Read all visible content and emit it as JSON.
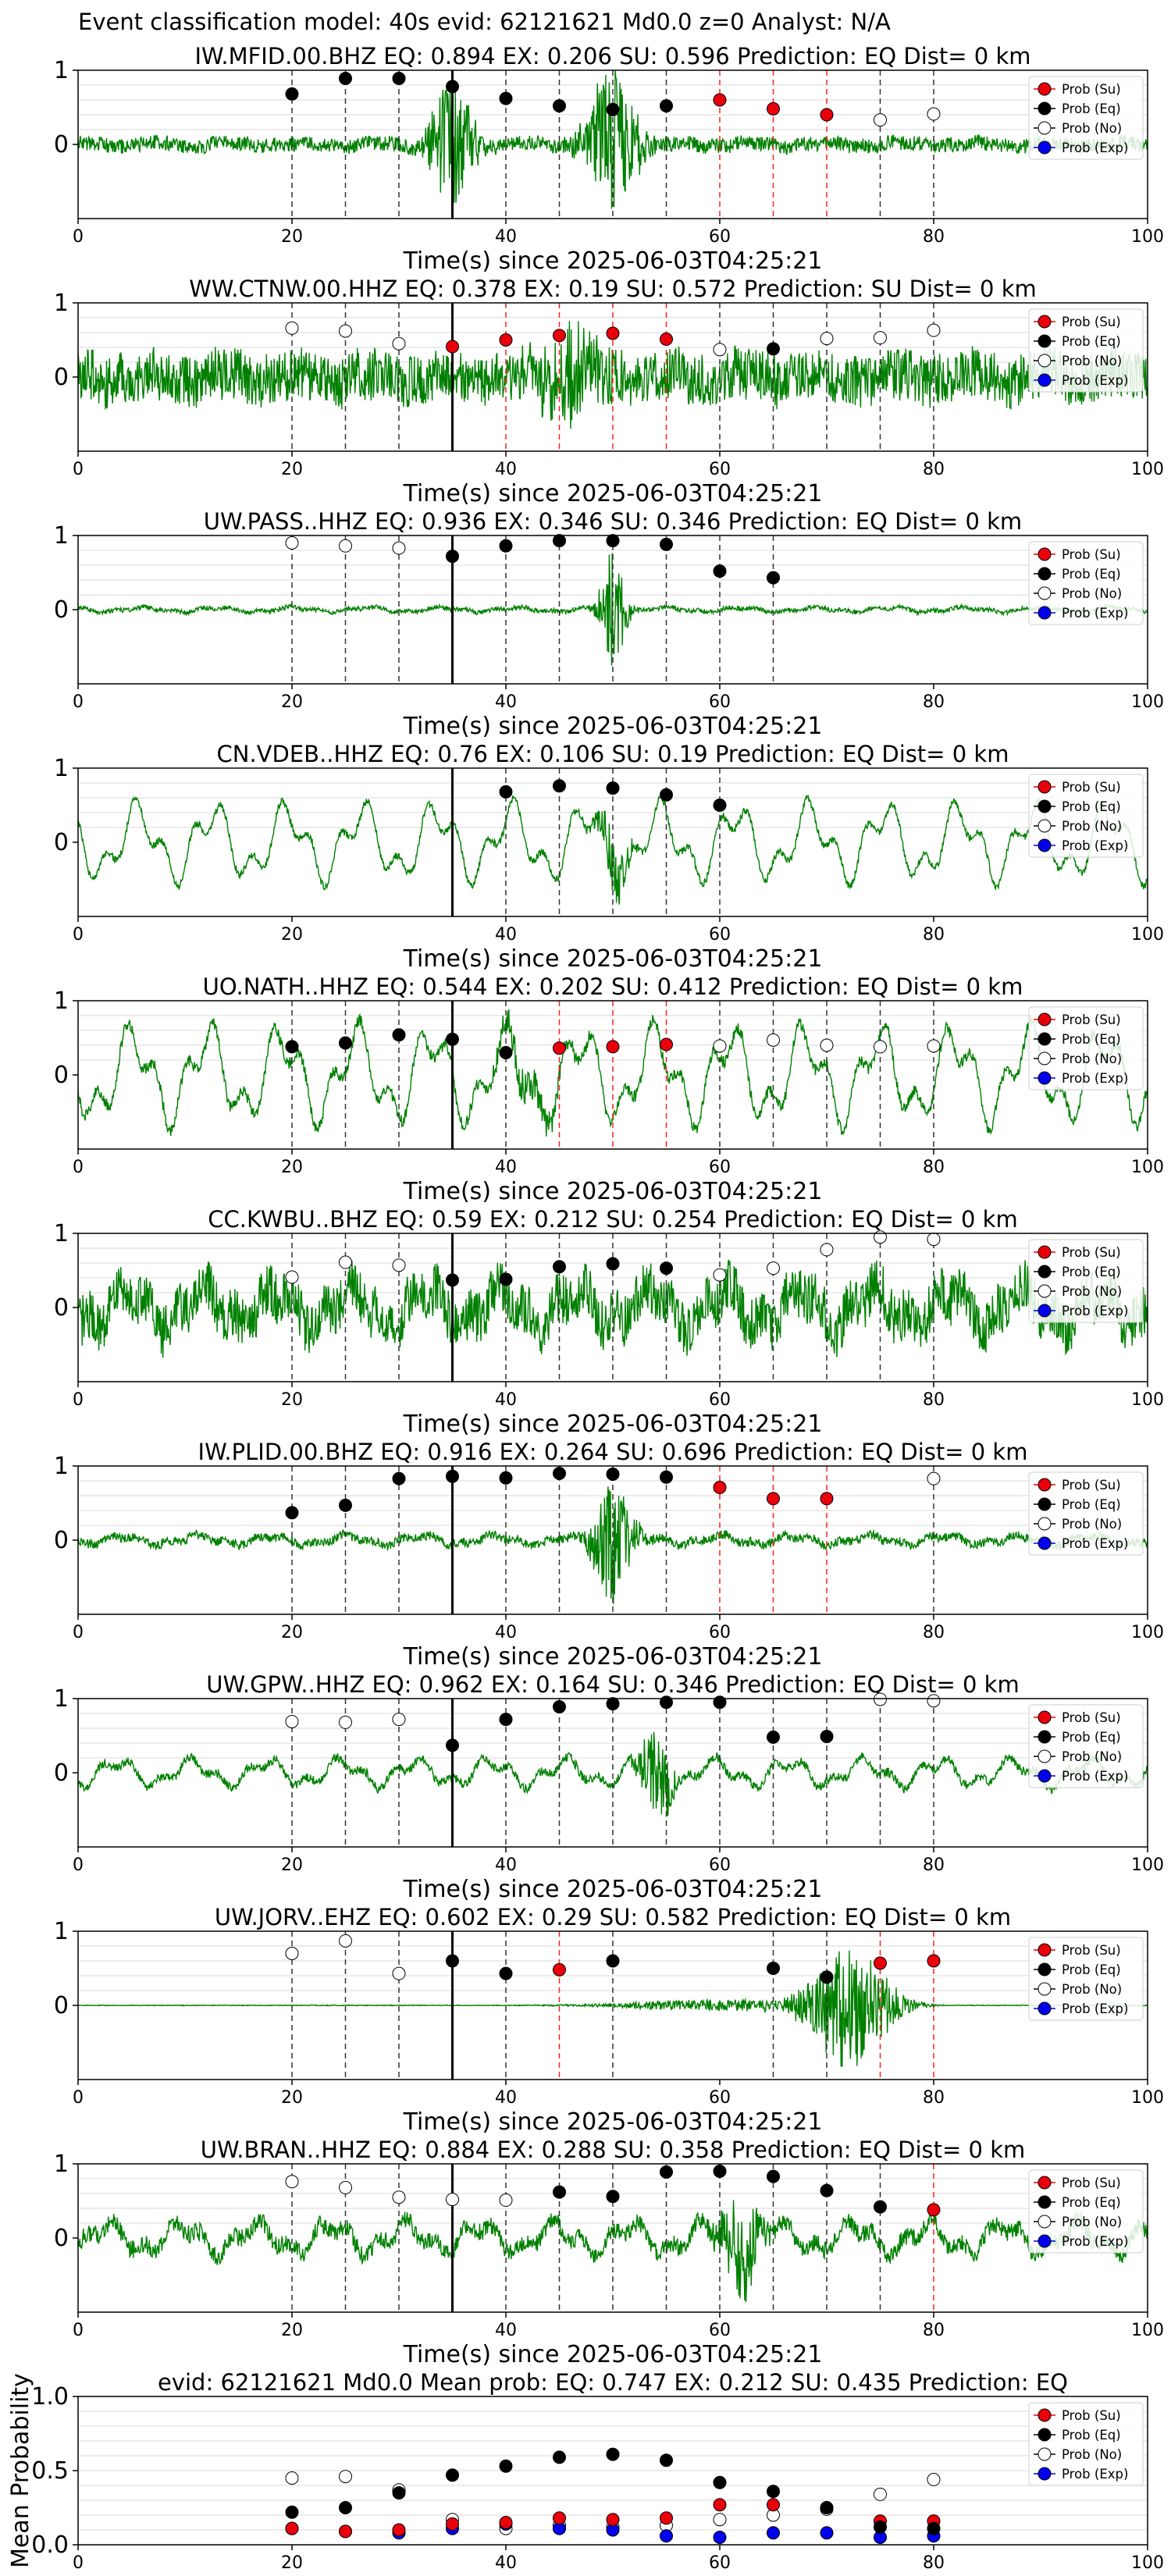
{
  "suptitle": "Event classification model: 40s evid: 62121621 Md0.0 z=0 Analyst: N/A",
  "legend": [
    "Prob (Su)",
    "Prob (Eq)",
    "Prob (No)",
    "Prob (Exp)"
  ],
  "colors": {
    "su": "#e8000b",
    "eq": "#000000",
    "no": "#ffffff",
    "exp": "#0000ee",
    "trace": "#008000",
    "grid": "#d9d9d9"
  },
  "chart_data": [
    {
      "type": "line",
      "station": "IW.MFID.00.BHZ",
      "title": "IW.MFID.00.BHZ   EQ: 0.894  EX: 0.206  SU: 0.596   Prediction: EQ    Dist= 0 km",
      "xlabel": "Time(s) since 2025-06-03T04:25:21",
      "xlim": [
        0,
        100
      ],
      "ylim": [
        -1,
        1
      ],
      "yticks": [
        "1",
        "0"
      ],
      "xticks": [
        "0",
        "20",
        "40",
        "60",
        "80",
        "100"
      ],
      "pick_time": 35,
      "points": [
        [
          20,
          0.68,
          "eq"
        ],
        [
          25,
          0.89,
          "eq"
        ],
        [
          30,
          0.89,
          "eq"
        ],
        [
          35,
          0.78,
          "eq"
        ],
        [
          40,
          0.62,
          "eq"
        ],
        [
          45,
          0.52,
          "eq"
        ],
        [
          50,
          0.47,
          "eq"
        ],
        [
          55,
          0.52,
          "eq"
        ],
        [
          60,
          0.6,
          "su"
        ],
        [
          65,
          0.48,
          "su"
        ],
        [
          70,
          0.4,
          "su"
        ],
        [
          75,
          0.33,
          "no"
        ],
        [
          80,
          0.41,
          "no"
        ]
      ],
      "trace": {
        "noise": 0.1,
        "lf": 0.04,
        "bursts": [
          [
            35,
            2,
            0.9
          ],
          [
            50,
            2.5,
            1.0
          ]
        ]
      }
    },
    {
      "type": "line",
      "station": "WW.CTNW.00.HHZ",
      "title": "WW.CTNW.00.HHZ   EQ: 0.378  EX: 0.19  SU: 0.572   Prediction: SU    Dist= 0 km",
      "xlabel": "Time(s) since 2025-06-03T04:25:21",
      "xlim": [
        0,
        100
      ],
      "ylim": [
        -1,
        1
      ],
      "yticks": [
        "1",
        "0"
      ],
      "xticks": [
        "0",
        "20",
        "40",
        "60",
        "80",
        "100"
      ],
      "pick_time": 35,
      "points": [
        [
          20,
          0.66,
          "no"
        ],
        [
          25,
          0.62,
          "no"
        ],
        [
          30,
          0.45,
          "no"
        ],
        [
          35,
          0.41,
          "su"
        ],
        [
          40,
          0.5,
          "su"
        ],
        [
          45,
          0.56,
          "su"
        ],
        [
          50,
          0.59,
          "su"
        ],
        [
          55,
          0.51,
          "su"
        ],
        [
          60,
          0.37,
          "no"
        ],
        [
          65,
          0.38,
          "eq"
        ],
        [
          70,
          0.52,
          "no"
        ],
        [
          75,
          0.53,
          "no"
        ],
        [
          80,
          0.63,
          "no"
        ]
      ],
      "trace": {
        "noise": 0.35,
        "lf": 0.1,
        "bursts": [
          [
            46,
            3,
            0.5
          ]
        ]
      }
    },
    {
      "type": "line",
      "station": "UW.PASS..HHZ",
      "title": "UW.PASS..HHZ   EQ: 0.936  EX: 0.346  SU: 0.346   Prediction: EQ    Dist= 0 km",
      "xlabel": "Time(s) since 2025-06-03T04:25:21",
      "xlim": [
        0,
        100
      ],
      "ylim": [
        -1,
        1
      ],
      "yticks": [
        "1",
        "0"
      ],
      "xticks": [
        "0",
        "20",
        "40",
        "60",
        "80",
        "100"
      ],
      "pick_time": 35,
      "points": [
        [
          20,
          0.9,
          "no"
        ],
        [
          25,
          0.86,
          "no"
        ],
        [
          30,
          0.83,
          "no"
        ],
        [
          35,
          0.72,
          "eq"
        ],
        [
          40,
          0.86,
          "eq"
        ],
        [
          45,
          0.93,
          "eq"
        ],
        [
          50,
          0.93,
          "eq"
        ],
        [
          55,
          0.88,
          "eq"
        ],
        [
          60,
          0.52,
          "eq"
        ],
        [
          65,
          0.43,
          "eq"
        ]
      ],
      "trace": {
        "noise": 0.03,
        "lf": 0.04,
        "bursts": [
          [
            50,
            1.2,
            0.8
          ]
        ]
      }
    },
    {
      "type": "line",
      "station": "CN.VDEB..HHZ",
      "title": "CN.VDEB..HHZ   EQ: 0.76  EX: 0.106  SU: 0.19   Prediction: EQ    Dist= 0 km",
      "xlabel": "Time(s) since 2025-06-03T04:25:21",
      "xlim": [
        0,
        100
      ],
      "ylim": [
        -1,
        1
      ],
      "yticks": [
        "1",
        "0"
      ],
      "xticks": [
        "0",
        "20",
        "40",
        "60",
        "80",
        "100"
      ],
      "pick_time": 35,
      "points": [
        [
          40,
          0.68,
          "eq"
        ],
        [
          45,
          0.76,
          "eq"
        ],
        [
          50,
          0.73,
          "eq"
        ],
        [
          55,
          0.64,
          "eq"
        ],
        [
          60,
          0.5,
          "eq"
        ]
      ],
      "trace": {
        "noise": 0.05,
        "lf": 0.6,
        "bursts": [
          [
            50,
            1.5,
            0.4
          ]
        ]
      }
    },
    {
      "type": "line",
      "station": "UO.NATH..HHZ",
      "title": "UO.NATH..HHZ   EQ: 0.544  EX: 0.202  SU: 0.412   Prediction: EQ    Dist= 0 km",
      "xlabel": "Time(s) since 2025-06-03T04:25:21",
      "xlim": [
        0,
        100
      ],
      "ylim": [
        -1,
        1
      ],
      "yticks": [
        "1",
        "0"
      ],
      "xticks": [
        "0",
        "20",
        "40",
        "60",
        "80",
        "100"
      ],
      "pick_time": 35,
      "points": [
        [
          20,
          0.38,
          "eq"
        ],
        [
          25,
          0.43,
          "eq"
        ],
        [
          30,
          0.54,
          "eq"
        ],
        [
          35,
          0.48,
          "eq"
        ],
        [
          40,
          0.3,
          "eq"
        ],
        [
          45,
          0.36,
          "su"
        ],
        [
          50,
          0.38,
          "su"
        ],
        [
          55,
          0.41,
          "su"
        ],
        [
          60,
          0.39,
          "no"
        ],
        [
          65,
          0.47,
          "no"
        ],
        [
          70,
          0.4,
          "no"
        ],
        [
          75,
          0.38,
          "no"
        ],
        [
          80,
          0.39,
          "no"
        ]
      ],
      "trace": {
        "noise": 0.08,
        "lf": 0.75,
        "bursts": [
          [
            42,
            4,
            0.2
          ]
        ]
      }
    },
    {
      "type": "line",
      "station": "CC.KWBU..BHZ",
      "title": "CC.KWBU..BHZ   EQ: 0.59  EX: 0.212  SU: 0.254   Prediction: EQ    Dist= 0 km",
      "xlabel": "Time(s) since 2025-06-03T04:25:21",
      "xlim": [
        0,
        100
      ],
      "ylim": [
        -1,
        1
      ],
      "yticks": [
        "1",
        "0"
      ],
      "xticks": [
        "0",
        "20",
        "40",
        "60",
        "80",
        "100"
      ],
      "pick_time": 35,
      "points": [
        [
          20,
          0.41,
          "no"
        ],
        [
          25,
          0.61,
          "no"
        ],
        [
          30,
          0.57,
          "no"
        ],
        [
          35,
          0.37,
          "eq"
        ],
        [
          40,
          0.38,
          "eq"
        ],
        [
          45,
          0.55,
          "eq"
        ],
        [
          50,
          0.59,
          "eq"
        ],
        [
          55,
          0.53,
          "eq"
        ],
        [
          60,
          0.44,
          "no"
        ],
        [
          65,
          0.53,
          "no"
        ],
        [
          70,
          0.78,
          "no"
        ],
        [
          75,
          0.95,
          "no"
        ],
        [
          80,
          0.92,
          "no"
        ]
      ],
      "trace": {
        "noise": 0.35,
        "lf": 0.35,
        "bursts": []
      }
    },
    {
      "type": "line",
      "station": "IW.PLID.00.BHZ",
      "title": "IW.PLID.00.BHZ   EQ: 0.916  EX: 0.264  SU: 0.696   Prediction: EQ    Dist= 0 km",
      "xlabel": "Time(s) since 2025-06-03T04:25:21",
      "xlim": [
        0,
        100
      ],
      "ylim": [
        -1,
        1
      ],
      "yticks": [
        "1",
        "0"
      ],
      "xticks": [
        "0",
        "20",
        "40",
        "60",
        "80",
        "100"
      ],
      "pick_time": 35,
      "points": [
        [
          20,
          0.37,
          "eq"
        ],
        [
          25,
          0.47,
          "eq"
        ],
        [
          30,
          0.83,
          "eq"
        ],
        [
          35,
          0.86,
          "eq"
        ],
        [
          40,
          0.84,
          "eq"
        ],
        [
          45,
          0.9,
          "eq"
        ],
        [
          50,
          0.89,
          "eq"
        ],
        [
          55,
          0.85,
          "eq"
        ],
        [
          60,
          0.71,
          "su"
        ],
        [
          65,
          0.56,
          "su"
        ],
        [
          70,
          0.56,
          "su"
        ],
        [
          80,
          0.83,
          "no"
        ]
      ],
      "trace": {
        "noise": 0.06,
        "lf": 0.08,
        "bursts": [
          [
            50,
            2,
            0.8
          ]
        ]
      }
    },
    {
      "type": "line",
      "station": "UW.GPW..HHZ",
      "title": "UW.GPW..HHZ   EQ: 0.962  EX: 0.164  SU: 0.346   Prediction: EQ    Dist= 0 km",
      "xlabel": "Time(s) since 2025-06-03T04:25:21",
      "xlim": [
        0,
        100
      ],
      "ylim": [
        -1,
        1
      ],
      "yticks": [
        "1",
        "0"
      ],
      "xticks": [
        "0",
        "20",
        "40",
        "60",
        "80",
        "100"
      ],
      "pick_time": 35,
      "points": [
        [
          20,
          0.69,
          "no"
        ],
        [
          25,
          0.68,
          "no"
        ],
        [
          30,
          0.72,
          "no"
        ],
        [
          35,
          0.37,
          "eq"
        ],
        [
          40,
          0.72,
          "eq"
        ],
        [
          45,
          0.89,
          "eq"
        ],
        [
          50,
          0.93,
          "eq"
        ],
        [
          55,
          0.95,
          "eq"
        ],
        [
          60,
          0.95,
          "eq"
        ],
        [
          65,
          0.48,
          "eq"
        ],
        [
          70,
          0.49,
          "eq"
        ],
        [
          75,
          0.99,
          "no"
        ],
        [
          80,
          0.97,
          "no"
        ]
      ],
      "trace": {
        "noise": 0.06,
        "lf": 0.22,
        "bursts": [
          [
            54,
            1.5,
            0.7
          ]
        ]
      }
    },
    {
      "type": "line",
      "station": "UW.JORV..EHZ",
      "title": "UW.JORV..EHZ   EQ: 0.602  EX: 0.29  SU: 0.582   Prediction: EQ    Dist= 0 km",
      "xlabel": "Time(s) since 2025-06-03T04:25:21",
      "xlim": [
        0,
        100
      ],
      "ylim": [
        -1,
        1
      ],
      "yticks": [
        "1",
        "0"
      ],
      "xticks": [
        "0",
        "20",
        "40",
        "60",
        "80",
        "100"
      ],
      "pick_time": 35,
      "points": [
        [
          20,
          0.7,
          "no"
        ],
        [
          25,
          0.87,
          "no"
        ],
        [
          30,
          0.43,
          "no"
        ],
        [
          35,
          0.6,
          "eq"
        ],
        [
          40,
          0.43,
          "eq"
        ],
        [
          45,
          0.48,
          "su"
        ],
        [
          50,
          0.6,
          "eq"
        ],
        [
          65,
          0.5,
          "eq"
        ],
        [
          70,
          0.38,
          "eq"
        ],
        [
          75,
          0.57,
          "su"
        ],
        [
          80,
          0.6,
          "su"
        ]
      ],
      "trace": {
        "noise": 0.005,
        "lf": 0.0,
        "bursts": [
          [
            72,
            4,
            0.85
          ],
          [
            60,
            10,
            0.08
          ]
        ]
      }
    },
    {
      "type": "line",
      "station": "UW.BRAN..HHZ",
      "title": "UW.BRAN..HHZ   EQ: 0.884  EX: 0.288  SU: 0.358   Prediction: EQ    Dist= 0 km",
      "xlabel": "Time(s) since 2025-06-03T04:25:21",
      "xlim": [
        0,
        100
      ],
      "ylim": [
        -1,
        1
      ],
      "yticks": [
        "1",
        "0"
      ],
      "xticks": [
        "0",
        "20",
        "40",
        "60",
        "80",
        "100"
      ],
      "pick_time": 35,
      "points": [
        [
          20,
          0.76,
          "no"
        ],
        [
          25,
          0.68,
          "no"
        ],
        [
          30,
          0.55,
          "no"
        ],
        [
          35,
          0.52,
          "no"
        ],
        [
          40,
          0.51,
          "no"
        ],
        [
          45,
          0.62,
          "eq"
        ],
        [
          50,
          0.56,
          "eq"
        ],
        [
          55,
          0.89,
          "eq"
        ],
        [
          60,
          0.9,
          "eq"
        ],
        [
          65,
          0.83,
          "eq"
        ],
        [
          70,
          0.64,
          "eq"
        ],
        [
          75,
          0.42,
          "eq"
        ],
        [
          80,
          0.38,
          "su"
        ]
      ],
      "trace": {
        "noise": 0.12,
        "lf": 0.25,
        "bursts": [
          [
            62,
            2,
            0.7
          ]
        ]
      }
    },
    {
      "type": "scatter",
      "title": "evid: 62121621  Md0.0   Mean prob:   EQ: 0.747  EX: 0.212  SU: 0.435   Prediction: EQ",
      "ylabel": "Mean Probability",
      "xlim": [
        0,
        100
      ],
      "ylim": [
        0,
        1
      ],
      "yticks": [
        "1.0",
        "0.5",
        "0.0"
      ],
      "xticks": [
        "0",
        "20",
        "40",
        "60",
        "80",
        "100"
      ],
      "x": [
        20,
        25,
        30,
        35,
        40,
        45,
        50,
        55,
        60,
        65,
        70,
        75,
        80
      ],
      "series": [
        {
          "name": "Prob (No)",
          "key": "no",
          "values": [
            0.45,
            0.46,
            0.37,
            0.17,
            0.11,
            0.13,
            0.12,
            0.13,
            0.17,
            0.2,
            0.24,
            0.34,
            0.44
          ]
        },
        {
          "name": "Prob (Exp)",
          "key": "exp",
          "values": [
            0.11,
            0.09,
            0.08,
            0.11,
            0.14,
            0.11,
            0.1,
            0.06,
            0.05,
            0.08,
            0.08,
            0.05,
            0.06
          ]
        },
        {
          "name": "Prob (Su)",
          "key": "su",
          "values": [
            0.11,
            0.09,
            0.1,
            0.14,
            0.15,
            0.18,
            0.17,
            0.18,
            0.27,
            0.27,
            0.25,
            0.16,
            0.16
          ]
        },
        {
          "name": "Prob (Eq)",
          "key": "eq",
          "values": [
            0.22,
            0.25,
            0.35,
            0.47,
            0.53,
            0.59,
            0.61,
            0.57,
            0.42,
            0.36,
            0.25,
            0.12,
            0.11
          ]
        }
      ]
    }
  ]
}
